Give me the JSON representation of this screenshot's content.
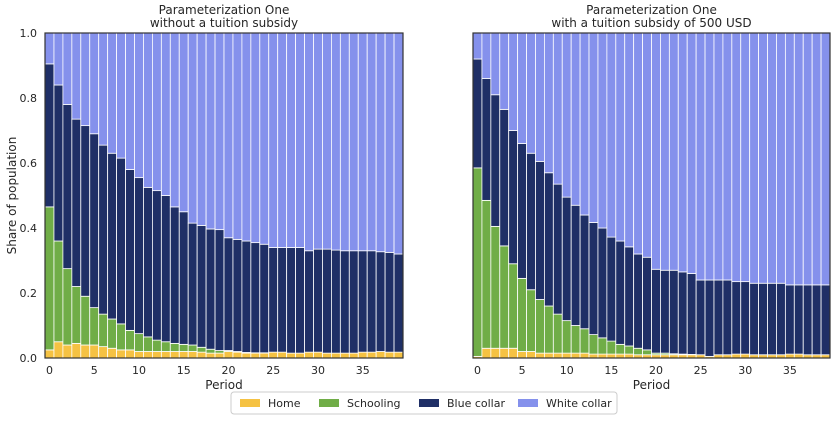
{
  "chart_data": {
    "type": "bar",
    "stacked": true,
    "ylabel": "Share of population",
    "ylim": [
      0,
      1.0
    ],
    "yticks": [
      "0.0",
      "0.2",
      "0.4",
      "0.6",
      "0.8",
      "1.0"
    ],
    "xticks": [
      0,
      5,
      10,
      15,
      20,
      25,
      30,
      35
    ],
    "grid": false,
    "legend": {
      "placement": "bottom-center",
      "entries": [
        "Home",
        "Schooling",
        "Blue collar",
        "White collar"
      ]
    },
    "colors": {
      "Home": "#f5c243",
      "Schooling": "#70ad47",
      "Blue collar": "#1f2f66",
      "White collar": "#8591ec"
    },
    "panels": [
      {
        "title": "Parameterization One",
        "subtitle": "without a tuition subsidy",
        "xlabel": "Period",
        "x": [
          0,
          1,
          2,
          3,
          4,
          5,
          6,
          7,
          8,
          9,
          10,
          11,
          12,
          13,
          14,
          15,
          16,
          17,
          18,
          19,
          20,
          21,
          22,
          23,
          24,
          25,
          26,
          27,
          28,
          29,
          30,
          31,
          32,
          33,
          34,
          35,
          36,
          37,
          38,
          39
        ],
        "series": [
          {
            "name": "Home",
            "values": [
              0.025,
              0.05,
              0.04,
              0.045,
              0.04,
              0.04,
              0.035,
              0.03,
              0.025,
              0.025,
              0.02,
              0.02,
              0.02,
              0.02,
              0.02,
              0.02,
              0.02,
              0.018,
              0.015,
              0.015,
              0.02,
              0.018,
              0.015,
              0.015,
              0.015,
              0.018,
              0.018,
              0.015,
              0.015,
              0.018,
              0.018,
              0.015,
              0.015,
              0.015,
              0.015,
              0.018,
              0.018,
              0.02,
              0.018,
              0.018
            ]
          },
          {
            "name": "Schooling",
            "values": [
              0.44,
              0.31,
              0.235,
              0.175,
              0.15,
              0.115,
              0.1,
              0.09,
              0.08,
              0.06,
              0.055,
              0.045,
              0.035,
              0.03,
              0.025,
              0.022,
              0.02,
              0.015,
              0.012,
              0.008,
              0.003,
              0.002,
              0.002,
              0.001,
              0.001,
              0.0,
              0.0,
              0.0,
              0.0,
              0.0,
              0.0,
              0.0,
              0.0,
              0.0,
              0.0,
              0.0,
              0.0,
              0.0,
              0.0,
              0.0
            ]
          },
          {
            "name": "Blue collar",
            "values": [
              0.44,
              0.48,
              0.505,
              0.515,
              0.525,
              0.535,
              0.52,
              0.51,
              0.51,
              0.495,
              0.48,
              0.46,
              0.46,
              0.45,
              0.42,
              0.408,
              0.375,
              0.375,
              0.37,
              0.372,
              0.347,
              0.345,
              0.343,
              0.339,
              0.334,
              0.322,
              0.322,
              0.325,
              0.325,
              0.312,
              0.317,
              0.32,
              0.317,
              0.315,
              0.315,
              0.312,
              0.312,
              0.307,
              0.307,
              0.302
            ]
          },
          {
            "name": "White collar",
            "values": [
              0.095,
              0.16,
              0.22,
              0.265,
              0.285,
              0.31,
              0.345,
              0.37,
              0.385,
              0.42,
              0.445,
              0.475,
              0.485,
              0.5,
              0.535,
              0.55,
              0.585,
              0.592,
              0.603,
              0.605,
              0.63,
              0.635,
              0.64,
              0.645,
              0.65,
              0.66,
              0.66,
              0.66,
              0.66,
              0.67,
              0.665,
              0.665,
              0.668,
              0.67,
              0.67,
              0.67,
              0.67,
              0.673,
              0.675,
              0.68
            ]
          }
        ]
      },
      {
        "title": "Parameterization One",
        "subtitle": "with a tuition subsidy of 500 USD",
        "xlabel": "Period",
        "x": [
          0,
          1,
          2,
          3,
          4,
          5,
          6,
          7,
          8,
          9,
          10,
          11,
          12,
          13,
          14,
          15,
          16,
          17,
          18,
          19,
          20,
          21,
          22,
          23,
          24,
          25,
          26,
          27,
          28,
          29,
          30,
          31,
          32,
          33,
          34,
          35,
          36,
          37,
          38,
          39
        ],
        "series": [
          {
            "name": "Home",
            "values": [
              0.005,
              0.03,
              0.03,
              0.03,
              0.03,
              0.02,
              0.02,
              0.015,
              0.015,
              0.015,
              0.015,
              0.015,
              0.015,
              0.012,
              0.012,
              0.012,
              0.012,
              0.012,
              0.01,
              0.01,
              0.01,
              0.01,
              0.01,
              0.01,
              0.01,
              0.01,
              0.005,
              0.01,
              0.01,
              0.012,
              0.012,
              0.01,
              0.01,
              0.01,
              0.01,
              0.012,
              0.012,
              0.01,
              0.01,
              0.01
            ]
          },
          {
            "name": "Schooling",
            "values": [
              0.58,
              0.455,
              0.375,
              0.315,
              0.26,
              0.225,
              0.19,
              0.165,
              0.145,
              0.12,
              0.1,
              0.085,
              0.075,
              0.06,
              0.05,
              0.04,
              0.03,
              0.025,
              0.02,
              0.015,
              0.005,
              0.005,
              0.003,
              0.002,
              0.001,
              0.0,
              0.0,
              0.0,
              0.0,
              0.0,
              0.0,
              0.0,
              0.0,
              0.0,
              0.0,
              0.0,
              0.0,
              0.0,
              0.0,
              0.0
            ]
          },
          {
            "name": "Blue collar",
            "values": [
              0.335,
              0.375,
              0.405,
              0.42,
              0.41,
              0.415,
              0.42,
              0.425,
              0.41,
              0.4,
              0.38,
              0.37,
              0.35,
              0.345,
              0.338,
              0.32,
              0.318,
              0.305,
              0.29,
              0.285,
              0.258,
              0.255,
              0.257,
              0.253,
              0.249,
              0.23,
              0.235,
              0.23,
              0.23,
              0.223,
              0.223,
              0.22,
              0.22,
              0.22,
              0.22,
              0.213,
              0.213,
              0.215,
              0.215,
              0.215
            ]
          },
          {
            "name": "White collar",
            "values": [
              0.08,
              0.14,
              0.19,
              0.235,
              0.3,
              0.34,
              0.37,
              0.395,
              0.43,
              0.465,
              0.505,
              0.53,
              0.56,
              0.583,
              0.6,
              0.628,
              0.64,
              0.658,
              0.68,
              0.69,
              0.727,
              0.73,
              0.73,
              0.735,
              0.74,
              0.76,
              0.76,
              0.76,
              0.76,
              0.765,
              0.765,
              0.77,
              0.77,
              0.77,
              0.77,
              0.775,
              0.775,
              0.775,
              0.775,
              0.775
            ]
          }
        ]
      }
    ]
  }
}
